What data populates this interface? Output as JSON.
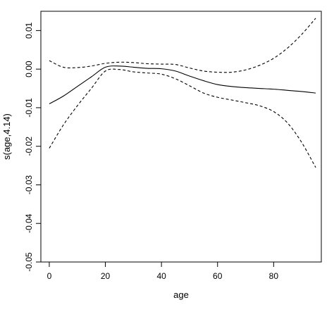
{
  "chart_data": {
    "type": "line",
    "title": "",
    "xlabel": "age",
    "ylabel": "s(age,4.14)",
    "xlim": [
      -3,
      97
    ],
    "ylim": [
      -0.05,
      0.015
    ],
    "xticks": [
      0,
      20,
      40,
      60,
      80
    ],
    "yticks": [
      -0.05,
      -0.04,
      -0.03,
      -0.02,
      -0.01,
      0.0,
      0.01
    ],
    "xtick_labels": [
      "0",
      "20",
      "40",
      "60",
      "80"
    ],
    "ytick_labels": [
      "-0.05",
      "-0.04",
      "-0.03",
      "-0.02",
      "-0.01",
      "0.00",
      "0.01"
    ],
    "grid": false,
    "line_color": "#000000",
    "series": [
      {
        "style": "solid",
        "x": [
          0,
          5,
          10,
          15,
          20,
          25,
          30,
          35,
          40,
          45,
          50,
          55,
          60,
          65,
          70,
          75,
          80,
          85,
          90,
          95
        ],
        "y": [
          -0.009,
          -0.007,
          -0.0045,
          -0.002,
          0.0005,
          0.0008,
          0.0005,
          0.0002,
          0.0001,
          -0.0005,
          -0.0018,
          -0.003,
          -0.004,
          -0.0045,
          -0.0048,
          -0.005,
          -0.0052,
          -0.0055,
          -0.0058,
          -0.0062
        ]
      },
      {
        "style": "dashed",
        "x": [
          0,
          5,
          10,
          15,
          20,
          25,
          30,
          35,
          40,
          45,
          50,
          55,
          60,
          65,
          70,
          75,
          80,
          85,
          90,
          95
        ],
        "y": [
          0.0022,
          0.0005,
          0.0004,
          0.0008,
          0.0015,
          0.0018,
          0.0017,
          0.0014,
          0.0013,
          0.0012,
          0.0003,
          -0.0005,
          -0.0008,
          -0.0008,
          -0.0002,
          0.001,
          0.0028,
          0.0055,
          0.009,
          0.0132
        ]
      },
      {
        "style": "dashed",
        "x": [
          0,
          5,
          10,
          15,
          20,
          25,
          30,
          35,
          40,
          45,
          50,
          55,
          60,
          65,
          70,
          75,
          80,
          85,
          90,
          95
        ],
        "y": [
          -0.0205,
          -0.0145,
          -0.0095,
          -0.005,
          -0.0005,
          -0.0001,
          -0.0007,
          -0.001,
          -0.0013,
          -0.0025,
          -0.0043,
          -0.0062,
          -0.0073,
          -0.008,
          -0.0087,
          -0.0095,
          -0.011,
          -0.014,
          -0.019,
          -0.0255
        ]
      }
    ]
  }
}
